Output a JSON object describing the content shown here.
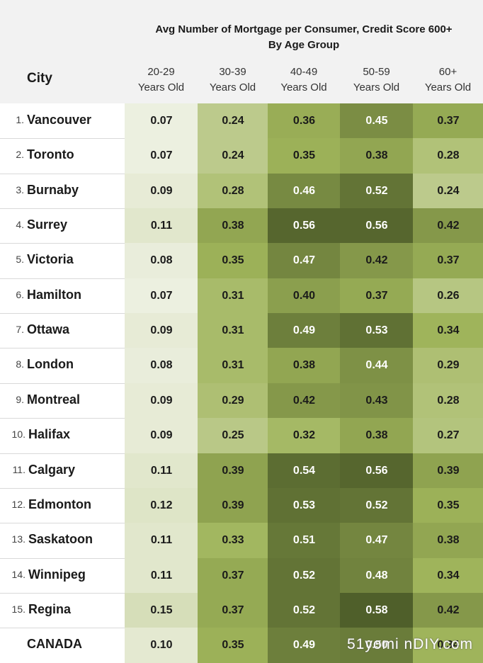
{
  "chart_data": {
    "type": "table",
    "title_line1": "Avg Number of Mortgage per Consumer, Credit Score 600+",
    "title_line2": "By Age Group",
    "row_header": "City",
    "columns": [
      {
        "line1": "20-29",
        "line2": "Years Old"
      },
      {
        "line1": "30-39",
        "line2": "Years Old"
      },
      {
        "line1": "40-49",
        "line2": "Years Old"
      },
      {
        "line1": "50-59",
        "line2": "Years Old"
      },
      {
        "line1": "60+",
        "line2": "Years Old"
      }
    ],
    "rows": [
      {
        "rank": "1.",
        "city": "Vancouver",
        "values": [
          0.07,
          0.24,
          0.36,
          0.45,
          0.37
        ]
      },
      {
        "rank": "2.",
        "city": "Toronto",
        "values": [
          0.07,
          0.24,
          0.35,
          0.38,
          0.28
        ]
      },
      {
        "rank": "3.",
        "city": "Burnaby",
        "values": [
          0.09,
          0.28,
          0.46,
          0.52,
          0.24
        ]
      },
      {
        "rank": "4.",
        "city": "Surrey",
        "values": [
          0.11,
          0.38,
          0.56,
          0.56,
          0.42
        ]
      },
      {
        "rank": "5.",
        "city": "Victoria",
        "values": [
          0.08,
          0.35,
          0.47,
          0.42,
          0.37
        ]
      },
      {
        "rank": "6.",
        "city": "Hamilton",
        "values": [
          0.07,
          0.31,
          0.4,
          0.37,
          0.26
        ]
      },
      {
        "rank": "7.",
        "city": "Ottawa",
        "values": [
          0.09,
          0.31,
          0.49,
          0.53,
          0.34
        ]
      },
      {
        "rank": "8.",
        "city": "London",
        "values": [
          0.08,
          0.31,
          0.38,
          0.44,
          0.29
        ]
      },
      {
        "rank": "9.",
        "city": "Montreal",
        "values": [
          0.09,
          0.29,
          0.42,
          0.43,
          0.28
        ]
      },
      {
        "rank": "10.",
        "city": "Halifax",
        "values": [
          0.09,
          0.25,
          0.32,
          0.38,
          0.27
        ]
      },
      {
        "rank": "11.",
        "city": "Calgary",
        "values": [
          0.11,
          0.39,
          0.54,
          0.56,
          0.39
        ]
      },
      {
        "rank": "12.",
        "city": "Edmonton",
        "values": [
          0.12,
          0.39,
          0.53,
          0.52,
          0.35
        ]
      },
      {
        "rank": "13.",
        "city": "Saskatoon",
        "values": [
          0.11,
          0.33,
          0.51,
          0.47,
          0.38
        ]
      },
      {
        "rank": "14.",
        "city": "Winnipeg",
        "values": [
          0.11,
          0.37,
          0.52,
          0.48,
          0.34
        ]
      },
      {
        "rank": "15.",
        "city": "Regina",
        "values": [
          0.15,
          0.37,
          0.52,
          0.58,
          0.42
        ]
      }
    ],
    "total_row": {
      "rank": "",
      "city": "CANADA",
      "values": [
        0.1,
        0.35,
        0.49,
        0.5,
        0.34
      ]
    },
    "color_scale": {
      "low": "#f2f4ea",
      "mid": "#9fb45a",
      "high": "#4f5f2a",
      "domain": [
        0.05,
        0.58
      ]
    }
  },
  "watermark": "51yomi nDIY.com"
}
